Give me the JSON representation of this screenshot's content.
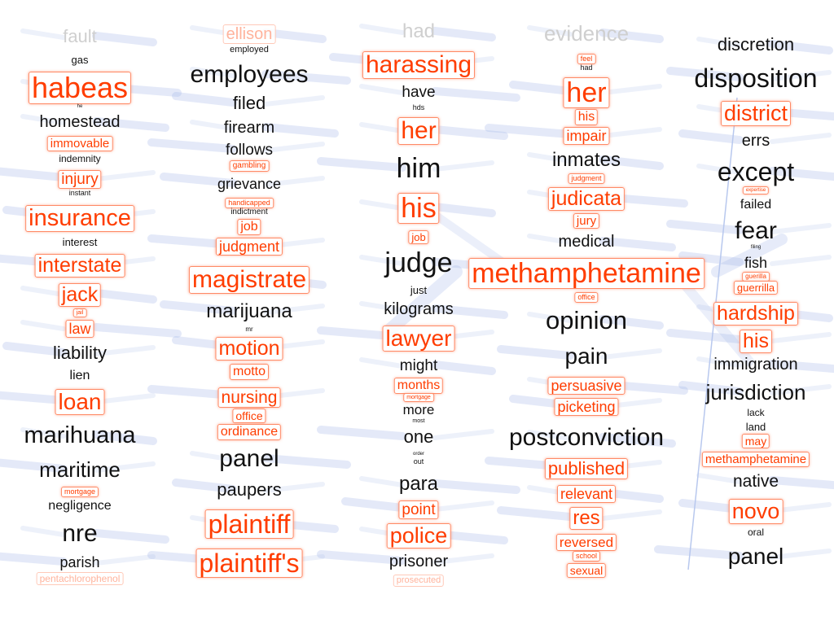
{
  "visualization": {
    "colors": {
      "highlight_text": "#ff3d00",
      "highlight_border": "#ff8a66",
      "normal_text": "#111111",
      "edge": "#9fb4e8"
    },
    "columns": [
      {
        "words": [
          {
            "text": "fault",
            "size": 22,
            "faded": true
          },
          {
            "text": "gas",
            "size": 13
          },
          {
            "text": "habeas",
            "size": 36,
            "hl": true
          },
          {
            "text": "he",
            "size": 6
          },
          {
            "text": "homestead",
            "size": 20
          },
          {
            "text": "immovable",
            "size": 15,
            "hl": true
          },
          {
            "text": "indemnity",
            "size": 12
          },
          {
            "text": "injury",
            "size": 19,
            "hl": true
          },
          {
            "text": "instant",
            "size": 9
          },
          {
            "text": "insurance",
            "size": 29,
            "hl": true
          },
          {
            "text": "interest",
            "size": 13
          },
          {
            "text": "interstate",
            "size": 25,
            "hl": true
          },
          {
            "text": "jack",
            "size": 25,
            "hl": true
          },
          {
            "text": "jail",
            "size": 7,
            "hl": true
          },
          {
            "text": "law",
            "size": 18,
            "hl": true
          },
          {
            "text": "liability",
            "size": 22
          },
          {
            "text": "lien",
            "size": 16
          },
          {
            "text": "loan",
            "size": 28,
            "hl": true
          },
          {
            "text": "marihuana",
            "size": 29
          },
          {
            "text": "maritime",
            "size": 26
          },
          {
            "text": "mortgage",
            "size": 9,
            "hl": true
          },
          {
            "text": "negligence",
            "size": 16
          },
          {
            "text": "nre",
            "size": 30
          },
          {
            "text": "parish",
            "size": 18
          },
          {
            "text": "pentachlorophenol",
            "size": 12,
            "hl": true,
            "faded": true
          }
        ]
      },
      {
        "words": [
          {
            "text": "ellison",
            "size": 20,
            "hl": true,
            "faded": true
          },
          {
            "text": "employed",
            "size": 11
          },
          {
            "text": "employees",
            "size": 30
          },
          {
            "text": "filed",
            "size": 22
          },
          {
            "text": "firearm",
            "size": 20
          },
          {
            "text": "follows",
            "size": 19
          },
          {
            "text": "gambling",
            "size": 10,
            "hl": true
          },
          {
            "text": "grievance",
            "size": 18
          },
          {
            "text": "handicapped",
            "size": 9,
            "hl": true
          },
          {
            "text": "indictment",
            "size": 10
          },
          {
            "text": "job",
            "size": 16,
            "hl": true
          },
          {
            "text": "judgment",
            "size": 18,
            "hl": true
          },
          {
            "text": "magistrate",
            "size": 30,
            "hl": true
          },
          {
            "text": "marijuana",
            "size": 24
          },
          {
            "text": "mr",
            "size": 8
          },
          {
            "text": "motion",
            "size": 25,
            "hl": true
          },
          {
            "text": "motto",
            "size": 16,
            "hl": true
          },
          {
            "text": "nursing",
            "size": 21,
            "hl": true
          },
          {
            "text": "office",
            "size": 14,
            "hl": true
          },
          {
            "text": "ordinance",
            "size": 16,
            "hl": true
          },
          {
            "text": "panel",
            "size": 30
          },
          {
            "text": "paupers",
            "size": 22
          },
          {
            "text": "plaintiff",
            "size": 32,
            "hl": true
          },
          {
            "text": "plaintiff's",
            "size": 32,
            "hl": true
          }
        ]
      },
      {
        "words": [
          {
            "text": "had",
            "size": 24,
            "faded": true
          },
          {
            "text": "harassing",
            "size": 30,
            "hl": true
          },
          {
            "text": "have",
            "size": 19
          },
          {
            "text": "hds",
            "size": 9
          },
          {
            "text": "her",
            "size": 30,
            "hl": true
          },
          {
            "text": "him",
            "size": 34
          },
          {
            "text": "his",
            "size": 34,
            "hl": true
          },
          {
            "text": "job",
            "size": 13,
            "hl": true
          },
          {
            "text": "judge",
            "size": 34
          },
          {
            "text": "just",
            "size": 13
          },
          {
            "text": "kilograms",
            "size": 20
          },
          {
            "text": "lawyer",
            "size": 28,
            "hl": true
          },
          {
            "text": "might",
            "size": 19
          },
          {
            "text": "months",
            "size": 16,
            "hl": true
          },
          {
            "text": "mortgage",
            "size": 7,
            "hl": true
          },
          {
            "text": "more",
            "size": 17
          },
          {
            "text": "most",
            "size": 7
          },
          {
            "text": "one",
            "size": 22
          },
          {
            "text": "order",
            "size": 6
          },
          {
            "text": "out",
            "size": 9
          },
          {
            "text": "para",
            "size": 24
          },
          {
            "text": "point",
            "size": 19,
            "hl": true
          },
          {
            "text": "police",
            "size": 27,
            "hl": true
          },
          {
            "text": "prisoner",
            "size": 20
          },
          {
            "text": "prosecuted",
            "size": 11,
            "hl": true,
            "faded": true
          }
        ]
      },
      {
        "words": [
          {
            "text": "evidence",
            "size": 26,
            "faded": true
          },
          {
            "text": "feel",
            "size": 9,
            "hl": true
          },
          {
            "text": "had",
            "size": 9
          },
          {
            "text": "her",
            "size": 34,
            "hl": true
          },
          {
            "text": "his",
            "size": 16,
            "hl": true
          },
          {
            "text": "impair",
            "size": 18,
            "hl": true
          },
          {
            "text": "inmates",
            "size": 24
          },
          {
            "text": "judgment",
            "size": 9,
            "hl": true
          },
          {
            "text": "judicata",
            "size": 25,
            "hl": true
          },
          {
            "text": "jury",
            "size": 15,
            "hl": true
          },
          {
            "text": "medical",
            "size": 20
          },
          {
            "text": "office",
            "size": 9,
            "hl": true
          },
          {
            "text": "opinion",
            "size": 31
          },
          {
            "text": "pain",
            "size": 28
          },
          {
            "text": "persuasive",
            "size": 18,
            "hl": true
          },
          {
            "text": "picketing",
            "size": 18,
            "hl": true
          },
          {
            "text": "postconviction",
            "size": 30
          },
          {
            "text": "published",
            "size": 22,
            "hl": true
          },
          {
            "text": "relevant",
            "size": 18,
            "hl": true
          },
          {
            "text": "res",
            "size": 24,
            "hl": true
          },
          {
            "text": "reversed",
            "size": 17,
            "hl": true
          },
          {
            "text": "school",
            "size": 9,
            "hl": true
          },
          {
            "text": "sexual",
            "size": 14,
            "hl": true
          }
        ]
      },
      {
        "words": [
          {
            "text": "discretion",
            "size": 22
          },
          {
            "text": "disposition",
            "size": 32
          },
          {
            "text": "district",
            "size": 27,
            "hl": true
          },
          {
            "text": "errs",
            "size": 20
          },
          {
            "text": "except",
            "size": 32
          },
          {
            "text": "expertise",
            "size": 6,
            "hl": true
          },
          {
            "text": "failed",
            "size": 16
          },
          {
            "text": "fear",
            "size": 30
          },
          {
            "text": "filing",
            "size": 6
          },
          {
            "text": "fish",
            "size": 18
          },
          {
            "text": "guerilla",
            "size": 8,
            "hl": true
          },
          {
            "text": "guerrilla",
            "size": 13,
            "hl": true
          },
          {
            "text": "hardship",
            "size": 25,
            "hl": true
          },
          {
            "text": "his",
            "size": 25,
            "hl": true
          },
          {
            "text": "immigration",
            "size": 20
          },
          {
            "text": "jurisdiction",
            "size": 26
          },
          {
            "text": "lack",
            "size": 12
          },
          {
            "text": "land",
            "size": 13
          },
          {
            "text": "may",
            "size": 14,
            "hl": true
          },
          {
            "text": "methamphetamine",
            "size": 15,
            "hl": true
          },
          {
            "text": "native",
            "size": 21
          },
          {
            "text": "novo",
            "size": 27,
            "hl": true
          },
          {
            "text": "oral",
            "size": 12
          },
          {
            "text": "panel",
            "size": 28
          }
        ]
      }
    ],
    "focus_word": {
      "text": "methamphetamine",
      "size": 34,
      "hl": true
    }
  }
}
